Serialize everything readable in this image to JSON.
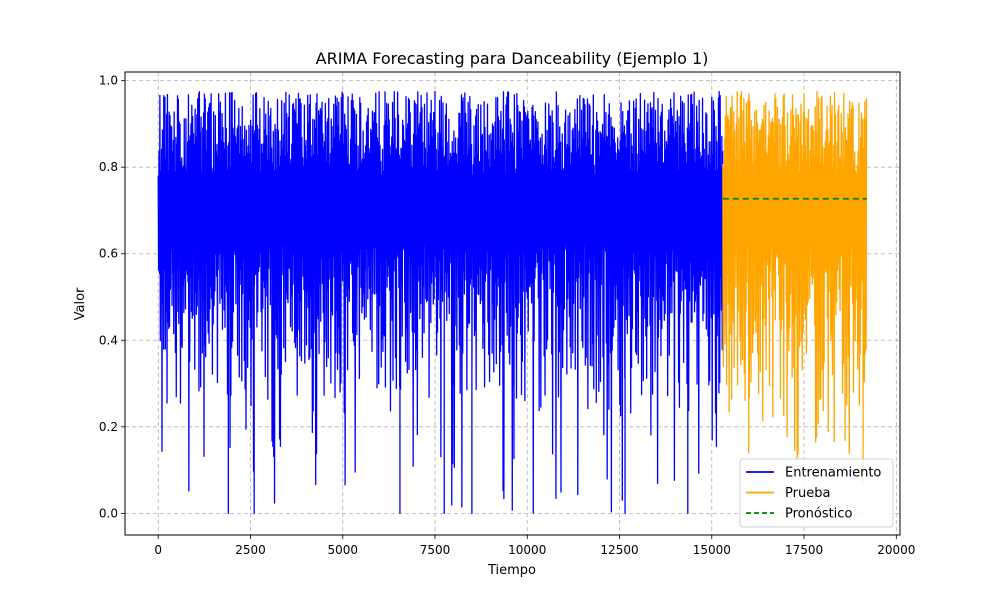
{
  "chart_data": {
    "type": "line",
    "title": "ARIMA Forecasting para Danceability (Ejemplo 1)",
    "xlabel": "Tiempo",
    "ylabel": "Valor",
    "xlim": [
      -900,
      20100
    ],
    "ylim": [
      -0.05,
      1.02
    ],
    "x_ticks": [
      0,
      2500,
      5000,
      7500,
      10000,
      12500,
      15000,
      17500,
      20000
    ],
    "x_tick_labels": [
      "0",
      "2500",
      "5000",
      "7500",
      "10000",
      "12500",
      "15000",
      "17500",
      "20000"
    ],
    "y_ticks": [
      0.0,
      0.2,
      0.4,
      0.6,
      0.8,
      1.0
    ],
    "y_tick_labels": [
      "0.0",
      "0.2",
      "0.4",
      "0.6",
      "0.8",
      "1.0"
    ],
    "grid": true,
    "legend_position": "lower-right",
    "series": [
      {
        "name": "Entrenamiento",
        "style": "solid",
        "color": "#0000ff",
        "x_range": [
          0,
          15300
        ],
        "y_min": 0.0,
        "y_max": 0.975,
        "y_mean": 0.6,
        "notable_lows": [
          [
            1900,
            0.0
          ],
          [
            2600,
            0.0
          ],
          [
            6550,
            0.0
          ],
          [
            7750,
            0.0
          ],
          [
            8500,
            0.0
          ],
          [
            12650,
            0.0
          ],
          [
            14350,
            0.0
          ]
        ],
        "notable_highs": [
          [
            150,
            0.965
          ],
          [
            1100,
            0.97
          ],
          [
            7500,
            0.975
          ],
          [
            15200,
            0.975
          ]
        ]
      },
      {
        "name": "Prueba",
        "style": "solid",
        "color": "#ffa500",
        "x_range": [
          15300,
          19200
        ],
        "y_min": 0.07,
        "y_max": 0.975,
        "y_mean": 0.6,
        "notable_lows": [
          [
            16000,
            0.14
          ],
          [
            19100,
            0.07
          ]
        ],
        "notable_highs": [
          [
            15800,
            0.975
          ],
          [
            17500,
            0.97
          ]
        ]
      },
      {
        "name": "Pronóstico",
        "style": "dashed",
        "color": "#008000",
        "x": [
          15300,
          19200
        ],
        "y": [
          0.727,
          0.727
        ]
      }
    ]
  }
}
